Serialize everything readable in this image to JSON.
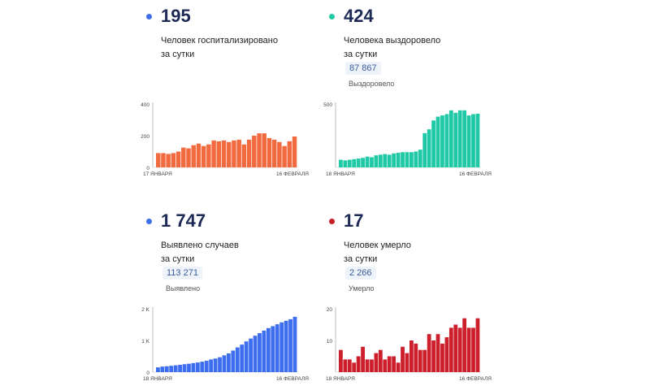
{
  "panels": [
    {
      "id": "hospitalized",
      "big_number": "195",
      "description_line1": "Человек госпитализировано",
      "description_line2": "за сутки",
      "total_value": "",
      "total_label": "",
      "accent_color": "#3f6ee8",
      "bar_color": "#f26a3f"
    },
    {
      "id": "recovered",
      "big_number": "424",
      "description_line1": "Человека выздоровело",
      "description_line2": "за сутки",
      "total_value": "87 867",
      "total_label": "Выздоровело",
      "accent_color": "#1ec9a3",
      "bar_color": "#20c9a6"
    },
    {
      "id": "cases",
      "big_number": "1 747",
      "description_line1": "Выявлено случаев",
      "description_line2": "за сутки",
      "total_value": "113 271",
      "total_label": "Выявлено",
      "accent_color": "#3f6ee8",
      "bar_color": "#3d6ef0"
    },
    {
      "id": "deaths",
      "big_number": "17",
      "description_line1": "Человек умерло",
      "description_line2": "за сутки",
      "total_value": "2 266",
      "total_label": "Умерло",
      "accent_color": "#c81e2a",
      "bar_color": "#cc1f2b"
    }
  ],
  "chart_data": [
    {
      "type": "bar",
      "title": "Человек госпитализировано за сутки",
      "x_start_label": "17 ЯНВАРЯ",
      "x_end_label": "16 ФЕВРАЛЯ",
      "ylim": [
        0,
        400
      ],
      "yticks": [
        "0",
        "200",
        "400"
      ],
      "ytick_values": [
        0,
        200,
        400
      ],
      "values": [
        90,
        90,
        85,
        90,
        100,
        125,
        120,
        140,
        150,
        135,
        145,
        170,
        165,
        170,
        160,
        170,
        175,
        145,
        175,
        200,
        215,
        215,
        185,
        175,
        160,
        135,
        165,
        195
      ],
      "grid": false
    },
    {
      "type": "bar",
      "title": "Человека выздоровело за сутки",
      "x_start_label": "18 ЯНВАРЯ",
      "x_end_label": "16 ФЕВРАЛЯ",
      "ylim": [
        0,
        500
      ],
      "yticks": [
        "500"
      ],
      "ytick_values": [
        500
      ],
      "values": [
        60,
        55,
        60,
        65,
        70,
        75,
        85,
        80,
        95,
        100,
        105,
        100,
        110,
        115,
        120,
        120,
        120,
        125,
        140,
        270,
        300,
        370,
        400,
        410,
        420,
        450,
        430,
        450,
        450,
        410,
        420,
        424
      ],
      "grid": false
    },
    {
      "type": "bar",
      "title": "Выявлено случаев за сутки",
      "x_start_label": "18 ЯНВАРЯ",
      "x_end_label": "16 ФЕВРАЛЯ",
      "ylim": [
        0,
        2000
      ],
      "yticks": [
        "0",
        "1 K",
        "2 K"
      ],
      "ytick_values": [
        0,
        1000,
        2000
      ],
      "values": [
        150,
        175,
        185,
        200,
        215,
        230,
        250,
        265,
        285,
        305,
        330,
        360,
        400,
        430,
        470,
        530,
        590,
        680,
        780,
        870,
        970,
        1060,
        1150,
        1230,
        1310,
        1390,
        1450,
        1510,
        1570,
        1620,
        1670,
        1747
      ],
      "grid": false
    },
    {
      "type": "bar",
      "title": "Человек умерло за сутки",
      "x_start_label": "18 ЯНВАРЯ",
      "x_end_label": "16 ФЕВРАЛЯ",
      "ylim": [
        0,
        20
      ],
      "yticks": [
        "10",
        "20"
      ],
      "ytick_values": [
        10,
        20
      ],
      "values": [
        7,
        4,
        4,
        3,
        5,
        8,
        4,
        4,
        6,
        7,
        4,
        5,
        5,
        3,
        8,
        6,
        10,
        9,
        7,
        7,
        12,
        10,
        12,
        9,
        11,
        14,
        15,
        14,
        17,
        14,
        14,
        17
      ],
      "grid": false
    }
  ]
}
